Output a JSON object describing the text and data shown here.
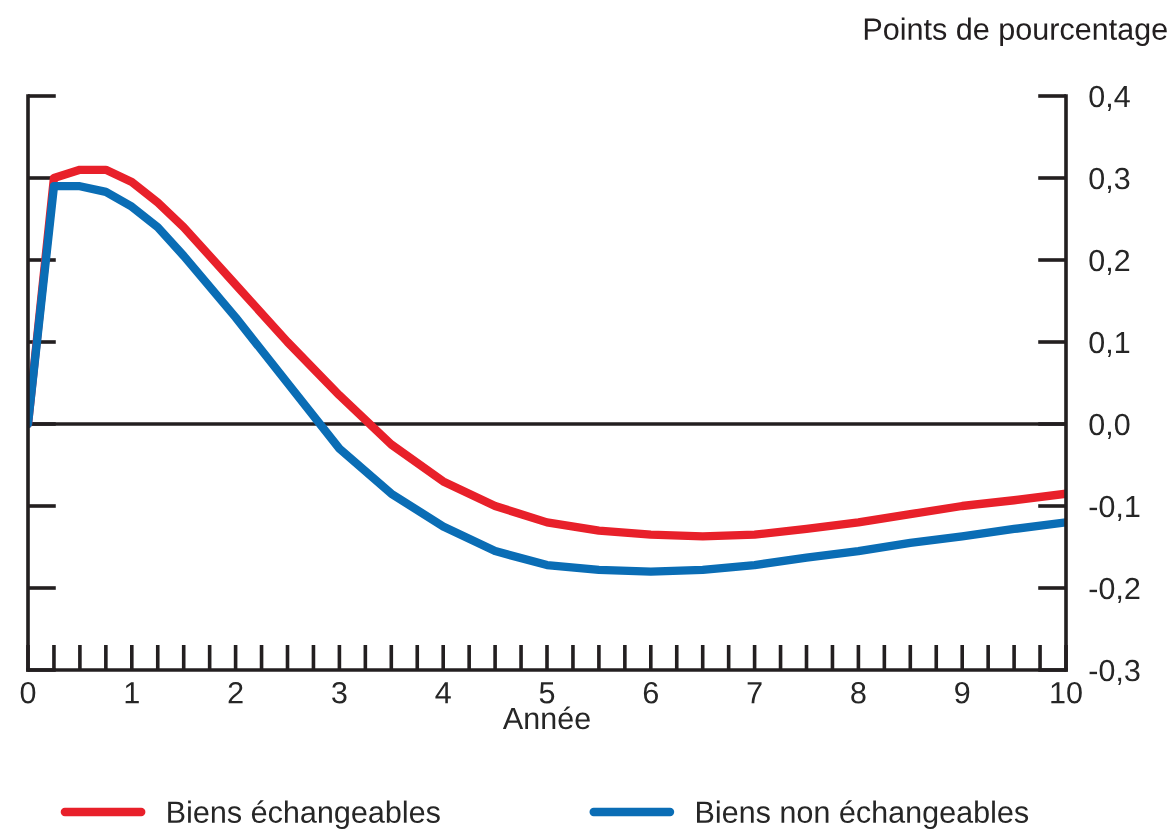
{
  "chart_data": {
    "type": "line",
    "xlabel": "Année",
    "ylabel": "Points de pourcentage",
    "x": [
      0,
      0.25,
      0.5,
      0.75,
      1,
      1.25,
      1.5,
      2,
      2.5,
      3,
      3.5,
      4,
      4.5,
      5,
      5.5,
      6,
      6.5,
      7,
      7.5,
      8,
      8.5,
      9,
      9.5,
      10
    ],
    "series": [
      {
        "name": "Biens échangeables",
        "color": "#e8202a",
        "values": [
          0,
          0.3,
          0.31,
          0.31,
          0.295,
          0.27,
          0.24,
          0.17,
          0.1,
          0.035,
          -0.025,
          -0.07,
          -0.1,
          -0.12,
          -0.13,
          -0.135,
          -0.137,
          -0.135,
          -0.128,
          -0.12,
          -0.11,
          -0.1,
          -0.093,
          -0.085
        ]
      },
      {
        "name": "Biens non échangeables",
        "color": "#0a6db5",
        "values": [
          0,
          0.29,
          0.29,
          0.283,
          0.265,
          0.24,
          0.205,
          0.13,
          0.05,
          -0.03,
          -0.085,
          -0.125,
          -0.155,
          -0.172,
          -0.178,
          -0.18,
          -0.178,
          -0.172,
          -0.163,
          -0.155,
          -0.145,
          -0.137,
          -0.128,
          -0.12
        ]
      }
    ],
    "xlim": [
      0,
      10
    ],
    "xticks": [
      0,
      {
        "value": 0.25,
        "label": null
      },
      {
        "value": 0.5,
        "label": null
      },
      {
        "value": 0.75,
        "label": null
      },
      1,
      {
        "value": 1.25,
        "label": null
      },
      {
        "value": 1.5,
        "label": null
      },
      {
        "value": 1.75,
        "label": null
      },
      2,
      {
        "value": 2.25,
        "label": null
      },
      {
        "value": 2.5,
        "label": null
      },
      {
        "value": 2.75,
        "label": null
      },
      3,
      {
        "value": 3.25,
        "label": null
      },
      {
        "value": 3.5,
        "label": null
      },
      {
        "value": 3.75,
        "label": null
      },
      4,
      {
        "value": 4.25,
        "label": null
      },
      {
        "value": 4.5,
        "label": null
      },
      {
        "value": 4.75,
        "label": null
      },
      5,
      {
        "value": 5.25,
        "label": null
      },
      {
        "value": 5.5,
        "label": null
      },
      {
        "value": 5.75,
        "label": null
      },
      6,
      {
        "value": 6.25,
        "label": null
      },
      {
        "value": 6.5,
        "label": null
      },
      {
        "value": 6.75,
        "label": null
      },
      7,
      {
        "value": 7.25,
        "label": null
      },
      {
        "value": 7.5,
        "label": null
      },
      {
        "value": 7.75,
        "label": null
      },
      8,
      {
        "value": 8.25,
        "label": null
      },
      {
        "value": 8.5,
        "label": null
      },
      {
        "value": 8.75,
        "label": null
      },
      9,
      {
        "value": 9.25,
        "label": null
      },
      {
        "value": 9.5,
        "label": null
      },
      {
        "value": 9.75,
        "label": null
      },
      10
    ],
    "ylim": [
      -0.3,
      0.4
    ],
    "yticks": [
      {
        "value": -0.3,
        "label": "-0,3"
      },
      {
        "value": -0.2,
        "label": "-0,2"
      },
      {
        "value": -0.1,
        "label": "-0,1"
      },
      {
        "value": 0.0,
        "label": "0,0"
      },
      {
        "value": 0.1,
        "label": "0,1"
      },
      {
        "value": 0.2,
        "label": "0,2"
      },
      {
        "value": 0.3,
        "label": "0,3"
      },
      {
        "value": 0.4,
        "label": "0,4"
      }
    ],
    "ref_lines": [
      {
        "axis": "y",
        "value": 0,
        "color": "#231f20"
      }
    ],
    "grid": false,
    "legend": "bottom",
    "line_style": "solid",
    "marker": "none"
  }
}
